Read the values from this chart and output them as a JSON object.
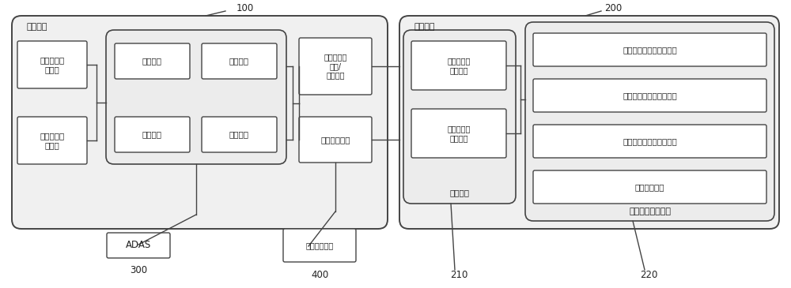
{
  "bg_color": "#ffffff",
  "line_color": "#444444",
  "box_fill": "#ffffff",
  "font_color": "#222222",
  "gray_fill": "#f0f0f0",
  "labels": {
    "system100": "100",
    "system200": "200",
    "system300": "300",
    "system400": "400",
    "system210": "210",
    "system220": "220",
    "chejixitong": "车机系统",
    "houtaixitong": "后台系统",
    "ADAS": "ADAS",
    "image_collect": "图像采集装置",
    "driving_behavior": "驾驶行为识\n别模块",
    "emotion_state": "情绪状态识\n别模块",
    "acquire_module": "获取模块",
    "confirm_module": "确定模块",
    "set_module": "设定模块",
    "judge_module": "判断模块",
    "driver_info_req": "驾驶员信息\n请求/\n接收模块",
    "face_detect": "人脸检测模块",
    "driver_info_recv": "驾驶员信息\n接收模块",
    "driver_info_fwd": "驾驶员信息\n转发模块",
    "vehicle_system": "车辆系统",
    "driver_id_recog": "驾驶员身份属性识别模块",
    "vehicle_img_recog": "车辆图像或视频识别模块",
    "vehicle_img_collect": "车辆图像或视频采集模块",
    "vehicle_register": "车辆登记模块",
    "traffic_system": "公安交通管理系统"
  }
}
